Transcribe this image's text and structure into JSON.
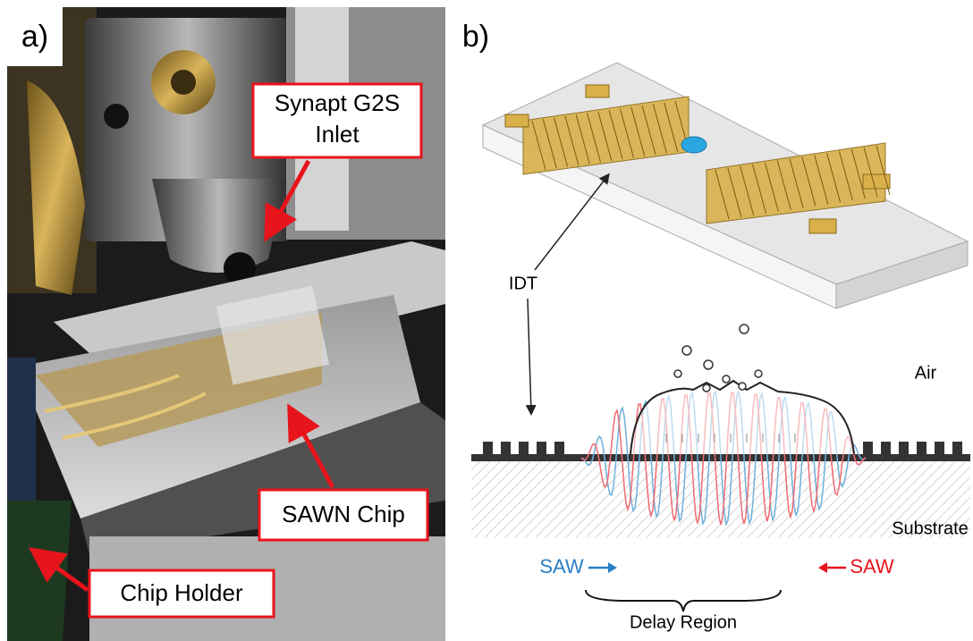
{
  "panel_a": {
    "label": "a)",
    "callouts": [
      {
        "lines": [
          "Synapt G2S",
          "Inlet"
        ]
      },
      {
        "lines": [
          "SAWN Chip"
        ]
      },
      {
        "lines": [
          "Chip Holder"
        ]
      }
    ]
  },
  "panel_b": {
    "label": "b)",
    "idt_label": "IDT",
    "air_label": "Air",
    "substrate_label": "Substrate",
    "saw_left": "SAW",
    "saw_right": "SAW",
    "delay_label": "Delay Region"
  }
}
